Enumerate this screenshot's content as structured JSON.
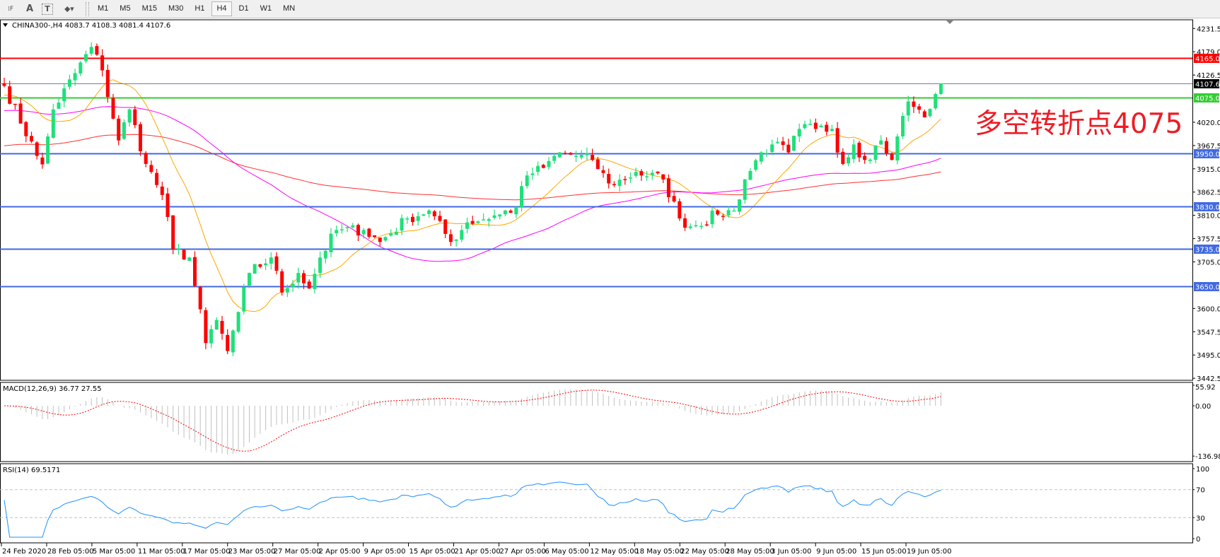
{
  "toolbar": {
    "tools": [
      {
        "name": "grid-fibo-icon",
        "glyph": "⁞F"
      },
      {
        "name": "text-icon",
        "glyph": "A"
      },
      {
        "name": "text-label-icon",
        "glyph": "T"
      },
      {
        "name": "shapes-icon",
        "glyph": "⬥▾"
      }
    ],
    "timeframes": [
      "M1",
      "M5",
      "M15",
      "M30",
      "H1",
      "H4",
      "D1",
      "W1",
      "MN"
    ],
    "active_timeframe": "H4"
  },
  "chart": {
    "header": "CHINA300-,H4  4083.7 4108.3 4081.4 4107.6",
    "symbol": "CHINA300-",
    "timeframe": "H4",
    "last_ohlc": {
      "open": 4083.7,
      "high": 4108.3,
      "low": 4081.4,
      "close": 4107.6
    },
    "annotation": {
      "text": "多空转折点4075",
      "color": "#ee1c25"
    },
    "price_ticks": [
      "4231.5",
      "4179.0",
      "4126.5",
      "4020.0",
      "3967.5",
      "3915.0",
      "3862.5",
      "3810.0",
      "3757.5",
      "3705.0",
      "3600.0",
      "3547.5",
      "3495.0",
      "3442.5"
    ],
    "levels": [
      {
        "price": 4165.0,
        "label": "4165.0",
        "color": "#ff0000"
      },
      {
        "price": 4107.6,
        "label": "4107.6",
        "color": "#708090",
        "label_bg": "#000000"
      },
      {
        "price": 4075.0,
        "label": "4075.0",
        "color": "#32cd32"
      },
      {
        "price": 3950.0,
        "label": "3950.0",
        "color": "#4169e1"
      },
      {
        "price": 3830.0,
        "label": "3830.0",
        "color": "#4169e1"
      },
      {
        "price": 3735.0,
        "label": "3735.0",
        "color": "#4169e1"
      },
      {
        "price": 3650.0,
        "label": "3650.0",
        "color": "#4169e1"
      }
    ],
    "colors": {
      "bull": "#1fe07a",
      "bear": "#ff0000",
      "ma_fast": "#ffa500",
      "ma_mid": "#ff00ff",
      "ma_slow": "#ff3030"
    },
    "close_keypoints": [
      [
        0,
        4102
      ],
      [
        6,
        3944
      ],
      [
        7,
        3925
      ],
      [
        9,
        4049
      ],
      [
        16,
        4190
      ],
      [
        18,
        4137
      ],
      [
        21,
        3979
      ],
      [
        23,
        4049
      ],
      [
        26,
        3926
      ],
      [
        29,
        3856
      ],
      [
        31,
        3733
      ],
      [
        34,
        3715
      ],
      [
        37,
        3522
      ],
      [
        39,
        3574
      ],
      [
        41,
        3504
      ],
      [
        43,
        3592
      ],
      [
        45,
        3680
      ],
      [
        49,
        3715
      ],
      [
        51,
        3636
      ],
      [
        54,
        3680
      ],
      [
        56,
        3645
      ],
      [
        58,
        3715
      ],
      [
        61,
        3777
      ],
      [
        66,
        3777
      ],
      [
        69,
        3750
      ],
      [
        74,
        3803
      ],
      [
        78,
        3821
      ],
      [
        82,
        3750
      ],
      [
        85,
        3794
      ],
      [
        91,
        3812
      ],
      [
        94,
        3829
      ],
      [
        96,
        3900
      ],
      [
        99,
        3917
      ],
      [
        102,
        3952
      ],
      [
        105,
        3944
      ],
      [
        108,
        3935
      ],
      [
        111,
        3882
      ],
      [
        114,
        3891
      ],
      [
        116,
        3908
      ],
      [
        121,
        3891
      ],
      [
        124,
        3803
      ],
      [
        126,
        3785
      ],
      [
        131,
        3812
      ],
      [
        134,
        3821
      ],
      [
        136,
        3891
      ],
      [
        139,
        3952
      ],
      [
        141,
        3970
      ],
      [
        144,
        3952
      ],
      [
        146,
        4005
      ],
      [
        149,
        4005
      ],
      [
        152,
        4005
      ],
      [
        154,
        3926
      ],
      [
        156,
        3970
      ],
      [
        158,
        3935
      ],
      [
        161,
        3979
      ],
      [
        163,
        3935
      ],
      [
        164,
        3988
      ],
      [
        166,
        4067
      ],
      [
        169,
        4031
      ],
      [
        171,
        4083.7
      ],
      [
        172,
        4107.6
      ]
    ],
    "dates": [
      "24 Feb 2020",
      "28 Feb 05:00",
      "5 Mar 05:00",
      "11 Mar 05:00",
      "17 Mar 05:00",
      "23 Mar 05:00",
      "27 Mar 05:00",
      "2 Apr 05:00",
      "9 Apr 05:00",
      "15 Apr 05:00",
      "21 Apr 05:00",
      "27 Apr 05:00",
      "6 May 05:00",
      "12 May 05:00",
      "18 May 05:00",
      "22 May 05:00",
      "28 May 05:00",
      "3 Jun 05:00",
      "9 Jun 05:00",
      "15 Jun 05:00",
      "19 Jun 05:00"
    ]
  },
  "macd": {
    "label": "MACD(12,26,9) 36.77 27.55",
    "ticks": [
      "55.92",
      "0.00",
      "-136.98"
    ],
    "max": 55.92,
    "min": -136.98,
    "hist_color": "#c0c0c0",
    "signal_color": "#ff0000"
  },
  "rsi": {
    "label": "RSI(14) 69.5171",
    "ticks": [
      "100",
      "70",
      "30",
      "0"
    ],
    "levels": [
      70,
      30
    ],
    "line_color": "#1e90ff"
  }
}
